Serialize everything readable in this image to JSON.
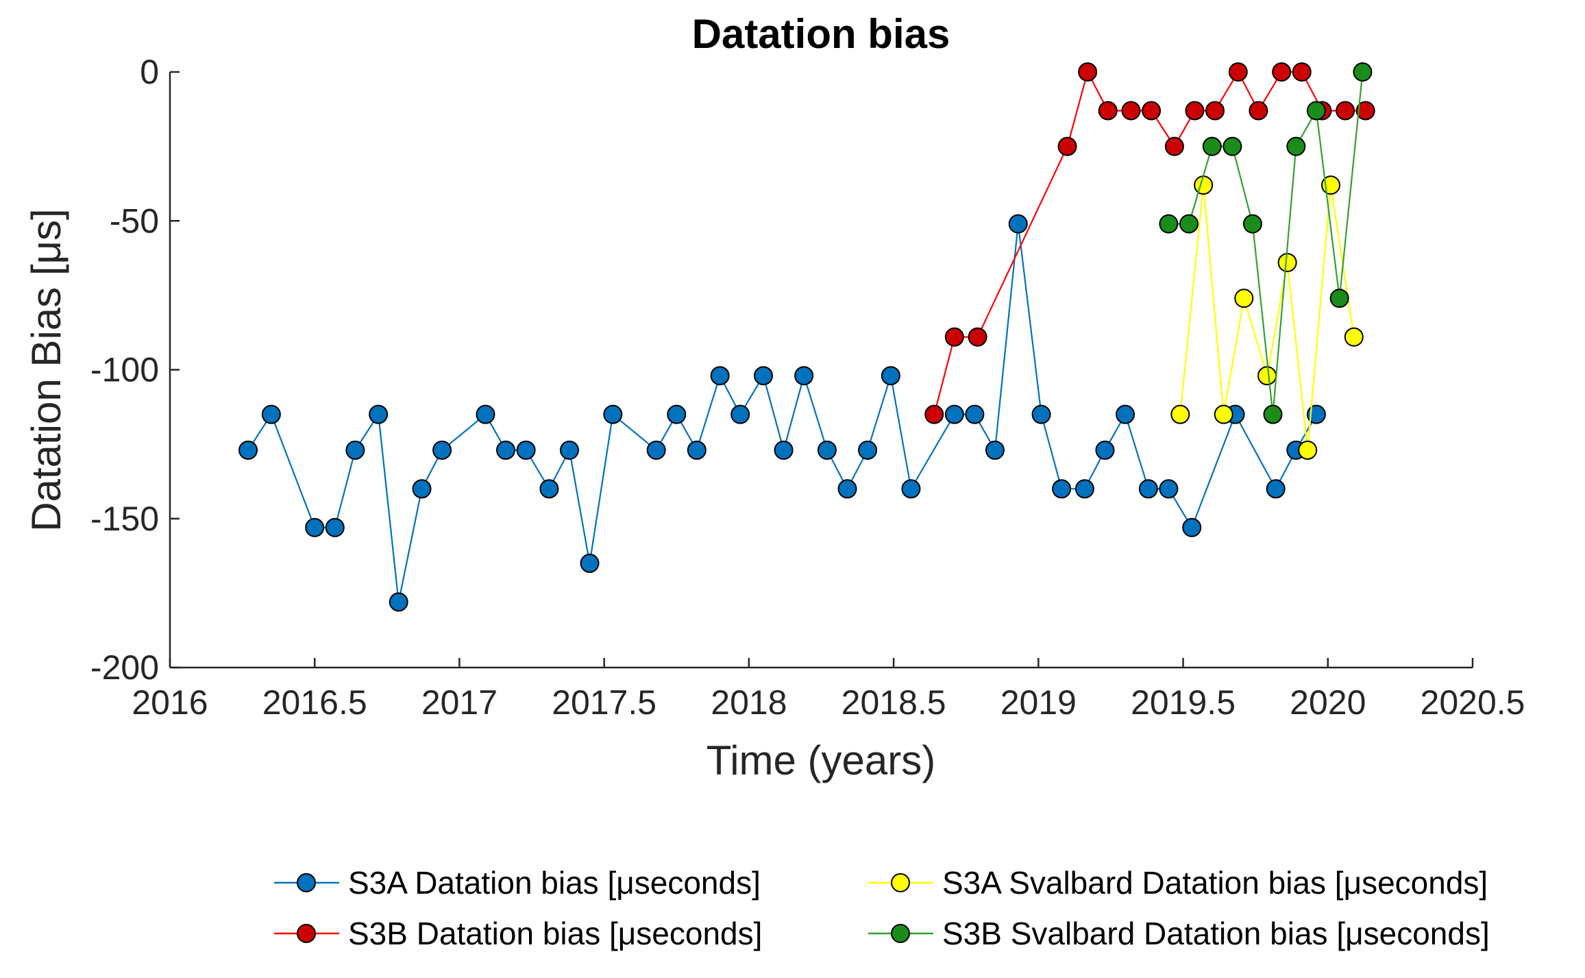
{
  "chart_data": {
    "type": "line",
    "title": "Datation bias",
    "xlabel": "Time (years)",
    "ylabel": "Datation Bias [μs]",
    "xlim": [
      2016,
      2020.5
    ],
    "ylim": [
      -200,
      0
    ],
    "xticks": [
      2016,
      2016.5,
      2017,
      2017.5,
      2018,
      2018.5,
      2019,
      2019.5,
      2020,
      2020.5
    ],
    "xtick_labels": [
      "2016",
      "2016.5",
      "2017",
      "2017.5",
      "2018",
      "2018.5",
      "2019",
      "2019.5",
      "2020",
      "2020.5"
    ],
    "yticks": [
      0,
      -50,
      -100,
      -150,
      -200
    ],
    "ytick_labels": [
      "0",
      "-50",
      "-100",
      "-150",
      "-200"
    ],
    "grid": false,
    "legend_position": "bottom",
    "series": [
      {
        "name": "S3A Datation bias [μseconds]",
        "color": "#0072BD",
        "marker_fill": "#0072BD",
        "x": [
          2016.27,
          2016.35,
          2016.5,
          2016.57,
          2016.64,
          2016.72,
          2016.79,
          2016.87,
          2016.94,
          2017.09,
          2017.16,
          2017.23,
          2017.31,
          2017.38,
          2017.45,
          2017.53,
          2017.68,
          2017.75,
          2017.82,
          2017.9,
          2017.97,
          2018.05,
          2018.12,
          2018.19,
          2018.27,
          2018.34,
          2018.41,
          2018.49,
          2018.56,
          2018.71,
          2018.78,
          2018.85,
          2018.93,
          2019.01,
          2019.08,
          2019.16,
          2019.23,
          2019.3,
          2019.38,
          2019.45,
          2019.53,
          2019.68,
          2019.82,
          2019.89,
          2019.96
        ],
        "y": [
          -127,
          -115,
          -153,
          -153,
          -127,
          -115,
          -178,
          -140,
          -127,
          -115,
          -127,
          -127,
          -140,
          -127,
          -165,
          -115,
          -127,
          -115,
          -127,
          -102,
          -115,
          -102,
          -127,
          -102,
          -127,
          -140,
          -127,
          -102,
          -140,
          -115,
          -115,
          -127,
          -51,
          -115,
          -140,
          -140,
          -127,
          -115,
          -140,
          -140,
          -153,
          -115,
          -140,
          -127,
          -115
        ]
      },
      {
        "name": "S3B Datation bias [μseconds]",
        "color": "#FF0000",
        "marker_fill": "#CC0000",
        "x": [
          2018.64,
          2018.71,
          2018.79,
          2019.1,
          2019.17,
          2019.24,
          2019.32,
          2019.39,
          2019.47,
          2019.54,
          2019.61,
          2019.69,
          2019.76,
          2019.84,
          2019.91,
          2019.98,
          2020.06,
          2020.13
        ],
        "y": [
          -115,
          -89,
          -89,
          -25,
          0,
          -13,
          -13,
          -13,
          -25,
          -13,
          -13,
          0,
          -13,
          0,
          0,
          -13,
          -13,
          -13
        ]
      },
      {
        "name": "S3A Svalbard Datation bias [μseconds]",
        "color": "#FFFF00",
        "marker_fill": "#FFFF00",
        "x": [
          2019.49,
          2019.57,
          2019.64,
          2019.71,
          2019.79,
          2019.86,
          2019.93,
          2020.01,
          2020.09
        ],
        "y": [
          -115,
          -38,
          -115,
          -76,
          -102,
          -64,
          -127,
          -38,
          -89
        ]
      },
      {
        "name": "S3B Svalbard Datation bias [μseconds]",
        "color": "#33A02C",
        "marker_fill": "#1A8C1A",
        "x": [
          2019.45,
          2019.52,
          2019.6,
          2019.67,
          2019.74,
          2019.81,
          2019.89,
          2019.96,
          2020.04,
          2020.12
        ],
        "y": [
          -51,
          -51,
          -25,
          -25,
          -51,
          -115,
          -25,
          -13,
          -76,
          0
        ]
      }
    ]
  }
}
